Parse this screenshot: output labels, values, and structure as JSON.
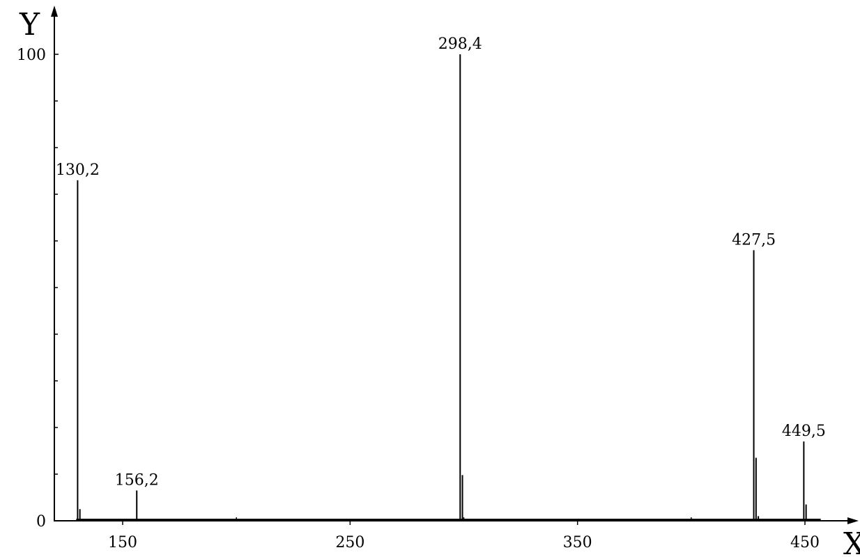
{
  "chart_data": {
    "type": "line",
    "title": "",
    "xlabel": "X",
    "ylabel": "Y",
    "xlim": [
      130,
      460
    ],
    "ylim": [
      0,
      100
    ],
    "x_ticks": [
      {
        "value": 150,
        "label": "150"
      },
      {
        "value": 250,
        "label": "250"
      },
      {
        "value": 350,
        "label": "350"
      },
      {
        "value": 450,
        "label": "450"
      }
    ],
    "x_minor_ticks": [
      200,
      300,
      400
    ],
    "y_ticks": [
      {
        "value": 0,
        "label": "0"
      },
      {
        "value": 100,
        "label": "100"
      }
    ],
    "y_minor_ticks": [
      10,
      20,
      30,
      40,
      50,
      60,
      70,
      80,
      90
    ],
    "grid": false,
    "legend": "none",
    "peaks": [
      {
        "x": 130.2,
        "y": 73,
        "label": "130,2"
      },
      {
        "x": 131.2,
        "y": 2.5
      },
      {
        "x": 156.2,
        "y": 6.5,
        "label": "156,2"
      },
      {
        "x": 298.4,
        "y": 100,
        "label": "298,4"
      },
      {
        "x": 299.4,
        "y": 9.8
      },
      {
        "x": 427.5,
        "y": 58,
        "label": "427,5"
      },
      {
        "x": 428.5,
        "y": 13.5
      },
      {
        "x": 429.5,
        "y": 1
      },
      {
        "x": 449.5,
        "y": 17,
        "label": "449,5"
      },
      {
        "x": 450.5,
        "y": 3.5
      }
    ],
    "color": "#000000"
  }
}
